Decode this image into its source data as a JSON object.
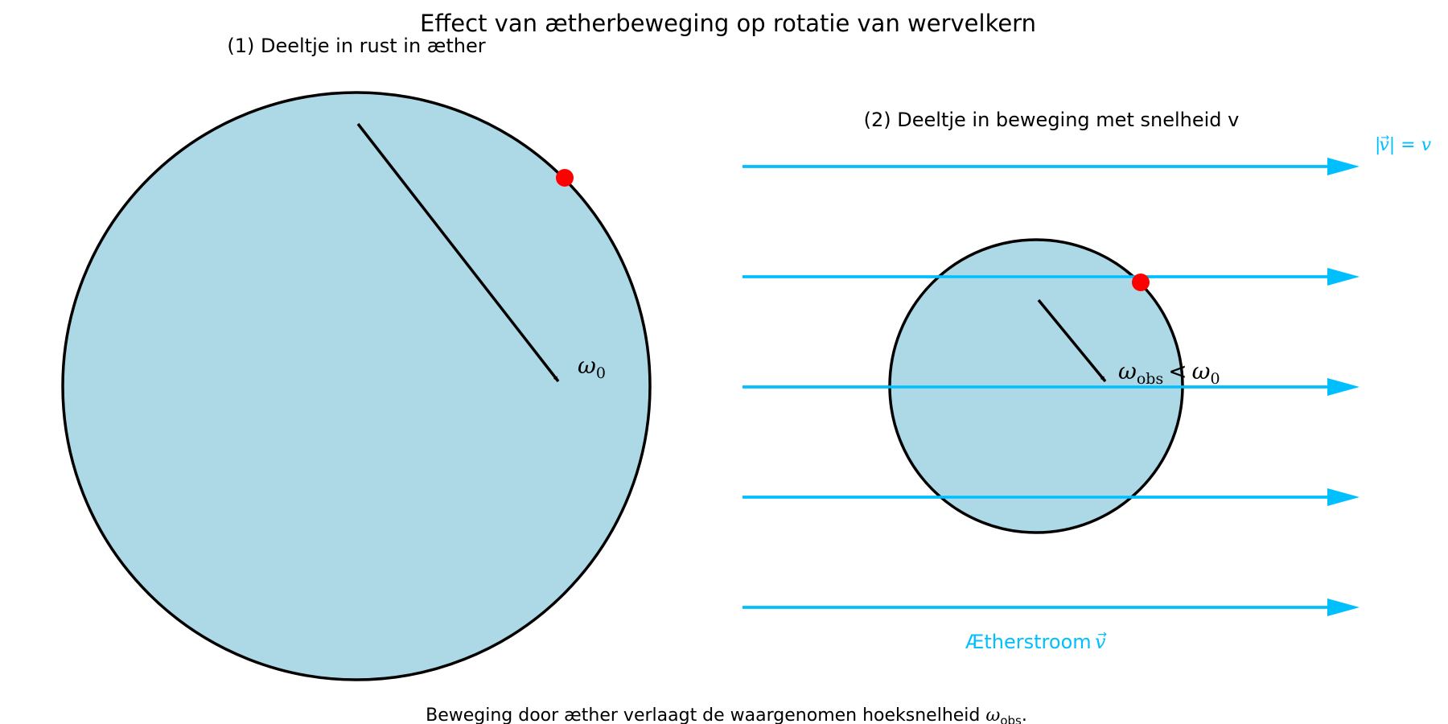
{
  "title": "Effect van ætherbeweging op rotatie van wervelkern",
  "caption": {
    "prefix": "Beweging door æther verlaagt de waargenomen hoeksnelheid ",
    "symbol": "ω",
    "subscript": "obs",
    "suffix": "."
  },
  "panel_rest": {
    "title": "(1) Deeltje in rust in æther",
    "omega_symbol": "ω",
    "omega_subscript": "0"
  },
  "panel_moving": {
    "title": "(2) Deeltje in beweging met snelheid v",
    "omega_symbol": "ω",
    "omega_subscript": "obs",
    "relation": "<",
    "omega_ref_symbol": "ω",
    "omega_ref_subscript": "0",
    "speed_label": {
      "prefix": "|",
      "vec_arrow": "→",
      "symbol": "v",
      "middle": "| = ",
      "value": "v"
    },
    "stream_label": {
      "text": "Ætherstroom ",
      "vec_arrow": "→",
      "symbol": "v"
    },
    "stream_line_count": 5
  },
  "colors": {
    "disk_fill": "#add8e6",
    "disk_stroke": "#000000",
    "marker": "#ff0000",
    "stream": "#00bfff",
    "arrow": "#000000"
  }
}
